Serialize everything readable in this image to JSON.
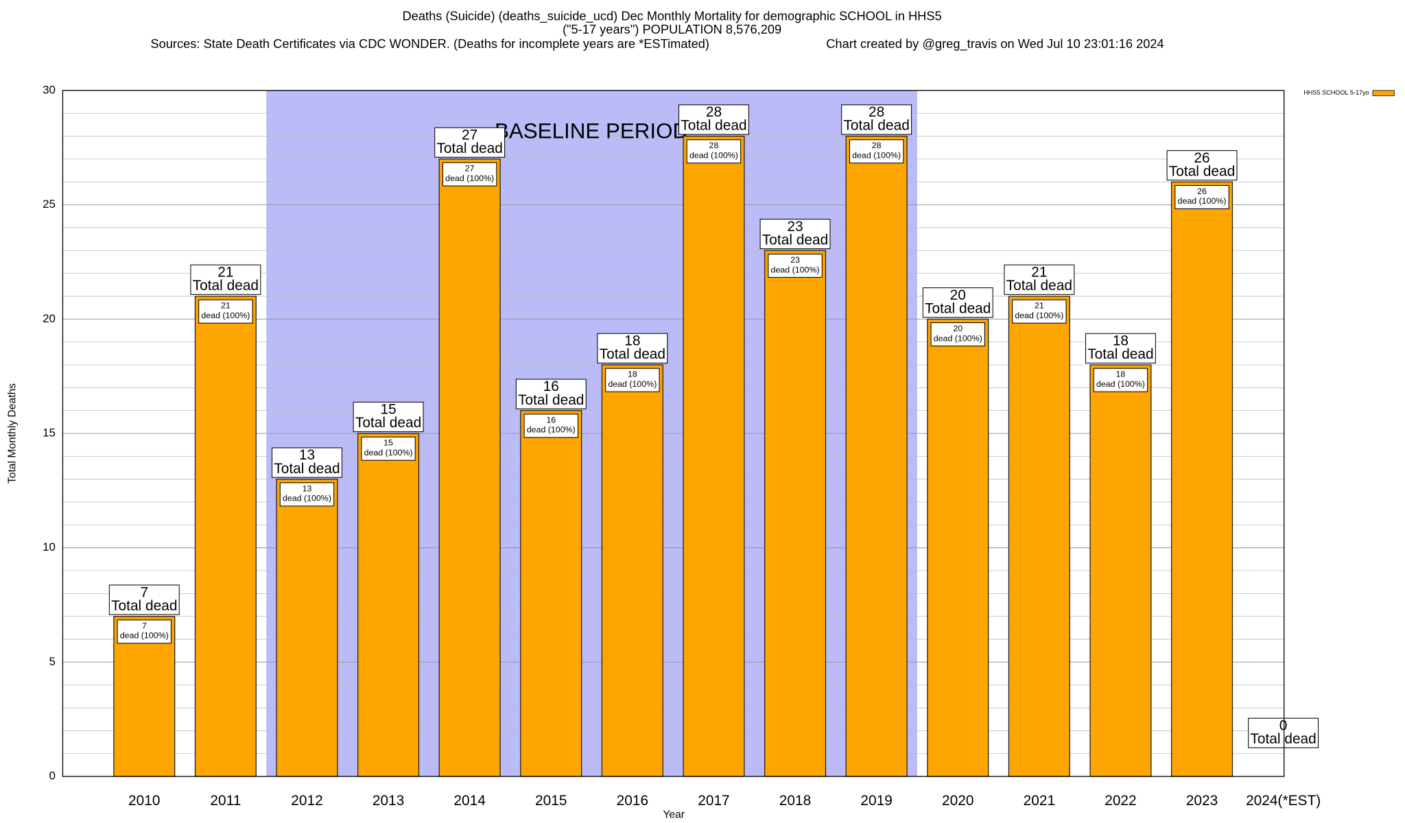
{
  "chart_data": {
    "type": "bar",
    "title": "Deaths (Suicide) (deaths_suicide_ucd) Dec Monthly Mortality for demographic SCHOOL in HHS5",
    "subtitle": "(\"5-17 years\") POPULATION 8,576,209",
    "source": "Sources: State Death Certificates via CDC WONDER. (Deaths for incomplete years are *ESTimated)",
    "credit": "Chart created by @greg_travis on Wed Jul 10 23:01:16 2024",
    "x_label": "Year",
    "y_label": "Total Monthly Deaths",
    "annotation": "BASELINE PERIOD",
    "baseline_categories": [
      "2012",
      "2019"
    ],
    "baseline_color": "#bbbbf8",
    "total_label": "Total dead",
    "inner_label": "dead (100%)",
    "categories": [
      "2010",
      "2011",
      "2012",
      "2013",
      "2014",
      "2015",
      "2016",
      "2017",
      "2018",
      "2019",
      "2020",
      "2021",
      "2022",
      "2023",
      "2024(*EST)"
    ],
    "series": [
      {
        "name": "HHS5 SCHOOL 5-17yo",
        "color": "#ffa500",
        "values": [
          7,
          21,
          13,
          15,
          27,
          16,
          18,
          28,
          23,
          28,
          20,
          21,
          18,
          26,
          0
        ]
      }
    ],
    "ylim": [
      0,
      30
    ],
    "yticks": [
      0,
      5,
      10,
      15,
      20,
      25,
      30
    ],
    "minor_yticks": [
      1,
      2,
      3,
      4,
      6,
      7,
      8,
      9,
      11,
      12,
      13,
      14,
      16,
      17,
      18,
      19,
      21,
      22,
      23,
      24,
      26,
      27,
      28,
      29
    ],
    "grid": true,
    "legend": "top-right"
  }
}
